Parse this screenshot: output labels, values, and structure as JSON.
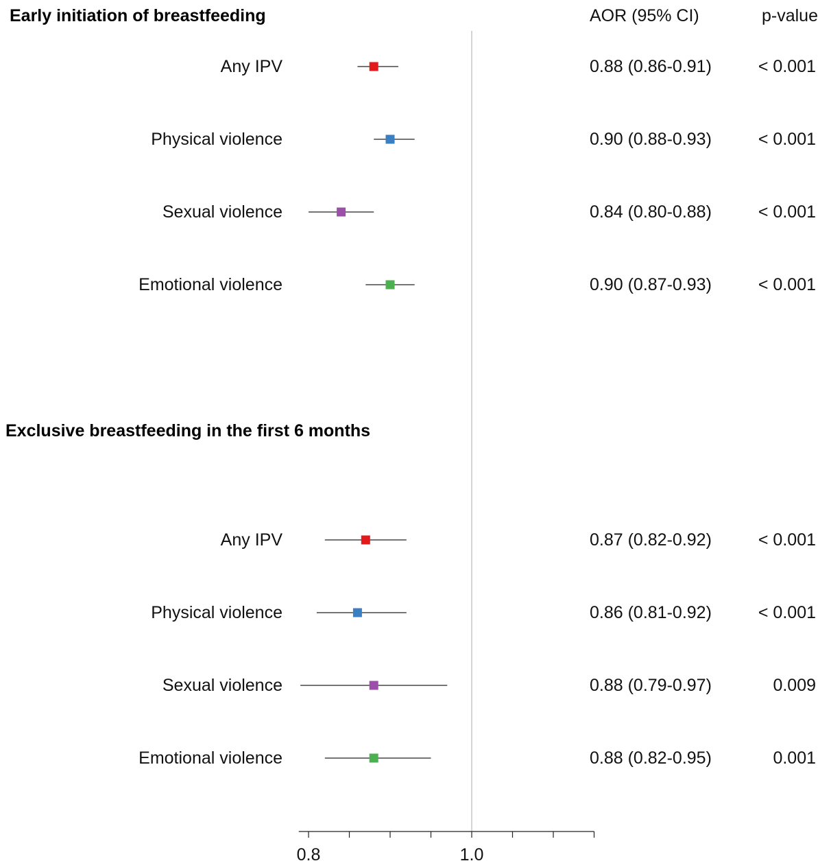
{
  "chart_data": {
    "type": "forest",
    "column_headers": {
      "estimate": "AOR (95% CI)",
      "p": "p-value"
    },
    "reference_value": 1.0,
    "x_ticks": [
      0.8,
      1.0
    ],
    "xlim": [
      0.788,
      1.15
    ],
    "colors": {
      "Any IPV": "#e31a1c",
      "Physical violence": "#3a7fc1",
      "Sexual violence": "#9b4fa8",
      "Emotional violence": "#4caf50"
    },
    "groups": [
      {
        "title": "Early initiation of breastfeeding",
        "rows": [
          {
            "label": "Any IPV",
            "aor": 0.88,
            "lo": 0.86,
            "hi": 0.91,
            "text": "0.88 (0.86-0.91)",
            "p": "< 0.001"
          },
          {
            "label": "Physical violence",
            "aor": 0.9,
            "lo": 0.88,
            "hi": 0.93,
            "text": "0.90 (0.88-0.93)",
            "p": "< 0.001"
          },
          {
            "label": "Sexual violence",
            "aor": 0.84,
            "lo": 0.8,
            "hi": 0.88,
            "text": "0.84 (0.80-0.88)",
            "p": "< 0.001"
          },
          {
            "label": "Emotional violence",
            "aor": 0.9,
            "lo": 0.87,
            "hi": 0.93,
            "text": "0.90 (0.87-0.93)",
            "p": "< 0.001"
          }
        ]
      },
      {
        "title": "Exclusive breastfeeding in the first 6 months",
        "rows": [
          {
            "label": "Any IPV",
            "aor": 0.87,
            "lo": 0.82,
            "hi": 0.92,
            "text": "0.87 (0.82-0.92)",
            "p": "< 0.001"
          },
          {
            "label": "Physical violence",
            "aor": 0.86,
            "lo": 0.81,
            "hi": 0.92,
            "text": "0.86 (0.81-0.92)",
            "p": "< 0.001"
          },
          {
            "label": "Sexual violence",
            "aor": 0.88,
            "lo": 0.79,
            "hi": 0.97,
            "text": "0.88 (0.79-0.97)",
            "p": "0.009"
          },
          {
            "label": "Emotional violence",
            "aor": 0.88,
            "lo": 0.82,
            "hi": 0.95,
            "text": "0.88 (0.82-0.95)",
            "p": "0.001"
          }
        ]
      }
    ]
  }
}
